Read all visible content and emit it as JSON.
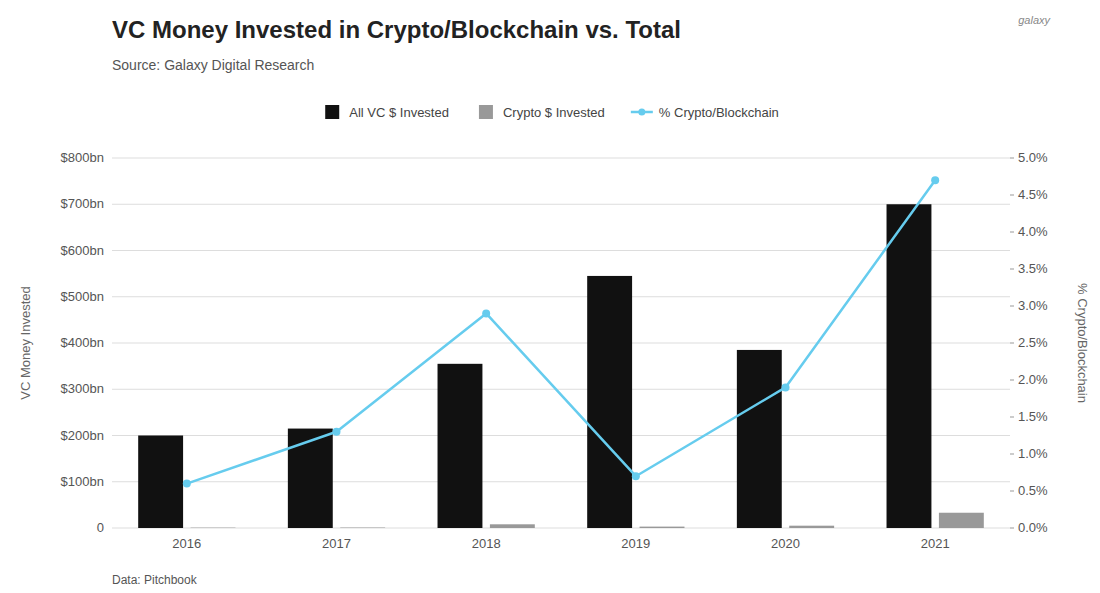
{
  "chart_data": {
    "type": "bar",
    "title": "VC Money Invested in Crypto/Blockchain vs. Total",
    "subtitle": "Source: Galaxy Digital Research",
    "footnote": "Data: Pitchbook",
    "logo": "galaxy",
    "categories": [
      "2016",
      "2017",
      "2018",
      "2019",
      "2020",
      "2021"
    ],
    "series": [
      {
        "name": "All VC $ Invested",
        "type": "bar",
        "color": "#111111",
        "values": [
          200,
          215,
          355,
          545,
          385,
          700
        ]
      },
      {
        "name": "Crypto $ Invested",
        "type": "bar",
        "color": "#999999",
        "values": [
          0.8,
          1.0,
          8.0,
          3.0,
          5.0,
          33.0
        ]
      },
      {
        "name": "% Crypto/Blockchain",
        "type": "line",
        "axis": "y2",
        "color": "#66ccee",
        "marker": "circle",
        "values": [
          0.006,
          0.013,
          0.029,
          0.007,
          0.019,
          0.047
        ]
      }
    ],
    "ylabel": "VC Money Invested",
    "y2label": "% Crypto/Blockchain",
    "ylim": [
      0,
      800
    ],
    "yticks": [
      0,
      {
        "value": 100,
        "label": "$100bn"
      },
      {
        "value": 200,
        "label": "$200bn"
      },
      {
        "value": 300,
        "label": "$300bn"
      },
      {
        "value": 400,
        "label": "$400bn"
      },
      {
        "value": 500,
        "label": "$500bn"
      },
      {
        "value": 600,
        "label": "$600bn"
      },
      {
        "value": 700,
        "label": "$700bn"
      },
      {
        "value": 800,
        "label": "$800bn"
      }
    ],
    "y2lim": [
      0,
      0.05
    ],
    "y2ticks": [
      {
        "value": 0.0,
        "label": "0.0%"
      },
      {
        "value": 0.005,
        "label": "0.5%"
      },
      {
        "value": 0.01,
        "label": "1.0%"
      },
      {
        "value": 0.015,
        "label": "1.5%"
      },
      {
        "value": 0.02,
        "label": "2.0%"
      },
      {
        "value": 0.025,
        "label": "2.5%"
      },
      {
        "value": 0.03,
        "label": "3.0%"
      },
      {
        "value": 0.035,
        "label": "3.5%"
      },
      {
        "value": 0.04,
        "label": "4.0%"
      },
      {
        "value": 0.045,
        "label": "4.5%"
      },
      {
        "value": 0.05,
        "label": "5.0%"
      }
    ],
    "grid": true,
    "legend": "top"
  }
}
